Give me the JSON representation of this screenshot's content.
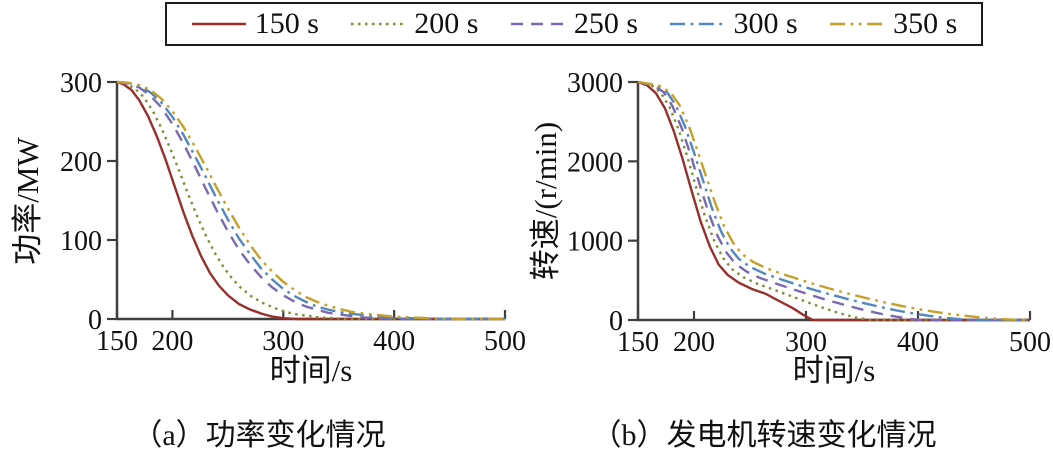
{
  "figure": {
    "background": "#ffffff"
  },
  "styles": {
    "axis_color": "#3f3f3f",
    "text_color": "#111111",
    "tick_font_size": 28,
    "line_width": 2.4,
    "dash_patterns": {
      "solid": "",
      "dotted": "2.5 4.5",
      "dashed": "12 8",
      "dashdot": "15 5.5 2.8 5.5",
      "dashdotdot": "15 5.5 2.8 5.5 2.8 5.5"
    }
  },
  "chart_data": [
    {
      "panel": "a",
      "type": "line",
      "caption": "（a）功率变化情况",
      "xlabel": "时间/s",
      "ylabel": "功率/MW",
      "xlim": [
        150,
        500
      ],
      "ylim": [
        0,
        300
      ],
      "xticks": [
        150,
        200,
        300,
        400,
        500
      ],
      "yticks": [
        0,
        100,
        200,
        300
      ],
      "grid": false,
      "legend_position": "top-outside",
      "series": [
        {
          "name": "150 s",
          "color": "#97302c",
          "dash": "solid",
          "points": [
            [
              150,
              300
            ],
            [
              156,
              297
            ],
            [
              163,
              290
            ],
            [
              170,
              277
            ],
            [
              178,
              257
            ],
            [
              186,
              231
            ],
            [
              194,
              201
            ],
            [
              202,
              168
            ],
            [
              210,
              135
            ],
            [
              218,
              105
            ],
            [
              226,
              79
            ],
            [
              234,
              58
            ],
            [
              242,
              42
            ],
            [
              250,
              30
            ],
            [
              260,
              19
            ],
            [
              270,
              12
            ],
            [
              280,
              7
            ],
            [
              290,
              3
            ],
            [
              300,
              1
            ],
            [
              312,
              0
            ],
            [
              500,
              0
            ]
          ]
        },
        {
          "name": "200 s",
          "color": "#7f8d33",
          "dash": "dotted",
          "points": [
            [
              150,
              300
            ],
            [
              158,
              298
            ],
            [
              166,
              292
            ],
            [
              174,
              281
            ],
            [
              182,
              264
            ],
            [
              190,
              242
            ],
            [
              198,
              216
            ],
            [
              206,
              188
            ],
            [
              214,
              159
            ],
            [
              222,
              131
            ],
            [
              230,
              106
            ],
            [
              238,
              84
            ],
            [
              246,
              66
            ],
            [
              254,
              51
            ],
            [
              262,
              39
            ],
            [
              272,
              28
            ],
            [
              282,
              20
            ],
            [
              292,
              14
            ],
            [
              302,
              9
            ],
            [
              312,
              6
            ],
            [
              322,
              4
            ],
            [
              332,
              2
            ],
            [
              345,
              1
            ],
            [
              358,
              0
            ],
            [
              500,
              0
            ]
          ]
        },
        {
          "name": "250 s",
          "color": "#7a68b0",
          "dash": "dashed",
          "points": [
            [
              150,
              300
            ],
            [
              160,
              298
            ],
            [
              170,
              293
            ],
            [
              180,
              283
            ],
            [
              190,
              268
            ],
            [
              200,
              247
            ],
            [
              210,
              222
            ],
            [
              220,
              194
            ],
            [
              230,
              165
            ],
            [
              240,
              137
            ],
            [
              250,
              111
            ],
            [
              260,
              88
            ],
            [
              270,
              69
            ],
            [
              280,
              53
            ],
            [
              290,
              40
            ],
            [
              300,
              30
            ],
            [
              310,
              22
            ],
            [
              320,
              16
            ],
            [
              330,
              12
            ],
            [
              340,
              8
            ],
            [
              350,
              6
            ],
            [
              360,
              4
            ],
            [
              372,
              2
            ],
            [
              386,
              1
            ],
            [
              400,
              0
            ],
            [
              500,
              0
            ]
          ]
        },
        {
          "name": "300 s",
          "color": "#5288bd",
          "dash": "dashdot",
          "points": [
            [
              150,
              300
            ],
            [
              160,
              299
            ],
            [
              170,
              295
            ],
            [
              180,
              287
            ],
            [
              190,
              274
            ],
            [
              200,
              256
            ],
            [
              210,
              233
            ],
            [
              220,
              207
            ],
            [
              230,
              180
            ],
            [
              240,
              152
            ],
            [
              250,
              126
            ],
            [
              260,
              102
            ],
            [
              270,
              82
            ],
            [
              280,
              64
            ],
            [
              290,
              50
            ],
            [
              300,
              38
            ],
            [
              310,
              29
            ],
            [
              320,
              22
            ],
            [
              330,
              16
            ],
            [
              340,
              12
            ],
            [
              350,
              9
            ],
            [
              360,
              7
            ],
            [
              372,
              5
            ],
            [
              384,
              3
            ],
            [
              398,
              2
            ],
            [
              415,
              1
            ],
            [
              435,
              0
            ],
            [
              500,
              0
            ]
          ]
        },
        {
          "name": "350 s",
          "color": "#c7a02a",
          "dash": "dashdotdot",
          "points": [
            [
              150,
              300
            ],
            [
              160,
              299
            ],
            [
              170,
              296
            ],
            [
              180,
              290
            ],
            [
              190,
              279
            ],
            [
              200,
              263
            ],
            [
              210,
              243
            ],
            [
              220,
              219
            ],
            [
              230,
              193
            ],
            [
              240,
              166
            ],
            [
              250,
              140
            ],
            [
              260,
              116
            ],
            [
              270,
              94
            ],
            [
              280,
              75
            ],
            [
              290,
              60
            ],
            [
              300,
              47
            ],
            [
              310,
              37
            ],
            [
              320,
              28
            ],
            [
              330,
              22
            ],
            [
              340,
              17
            ],
            [
              350,
              13
            ],
            [
              362,
              9
            ],
            [
              374,
              7
            ],
            [
              386,
              5
            ],
            [
              400,
              3
            ],
            [
              415,
              2
            ],
            [
              432,
              1
            ],
            [
              455,
              0
            ],
            [
              500,
              0
            ]
          ]
        }
      ]
    },
    {
      "panel": "b",
      "type": "line",
      "caption": "（b）发电机转速变化情况",
      "xlabel": "时间/s",
      "ylabel": "转速/(r/min)",
      "xlim": [
        150,
        500
      ],
      "ylim": [
        0,
        3000
      ],
      "xticks": [
        150,
        200,
        300,
        400,
        500
      ],
      "yticks": [
        0,
        1000,
        2000,
        3000
      ],
      "grid": false,
      "legend_position": "top-outside",
      "series": [
        {
          "name": "150 s",
          "color": "#97302c",
          "dash": "solid",
          "points": [
            [
              150,
              3000
            ],
            [
              158,
              2960
            ],
            [
              166,
              2860
            ],
            [
              174,
              2670
            ],
            [
              182,
              2380
            ],
            [
              190,
              2020
            ],
            [
              198,
              1620
            ],
            [
              206,
              1240
            ],
            [
              214,
              930
            ],
            [
              222,
              700
            ],
            [
              230,
              570
            ],
            [
              240,
              470
            ],
            [
              252,
              390
            ],
            [
              264,
              330
            ],
            [
              276,
              240
            ],
            [
              288,
              150
            ],
            [
              298,
              60
            ],
            [
              306,
              0
            ],
            [
              500,
              0
            ]
          ]
        },
        {
          "name": "200 s",
          "color": "#7f8d33",
          "dash": "dotted",
          "points": [
            [
              150,
              3000
            ],
            [
              162,
              2960
            ],
            [
              170,
              2870
            ],
            [
              178,
              2690
            ],
            [
              186,
              2410
            ],
            [
              194,
              2060
            ],
            [
              202,
              1670
            ],
            [
              210,
              1300
            ],
            [
              218,
              1000
            ],
            [
              226,
              780
            ],
            [
              234,
              640
            ],
            [
              244,
              540
            ],
            [
              256,
              460
            ],
            [
              270,
              390
            ],
            [
              285,
              310
            ],
            [
              300,
              230
            ],
            [
              315,
              155
            ],
            [
              330,
              85
            ],
            [
              345,
              30
            ],
            [
              358,
              0
            ],
            [
              500,
              0
            ]
          ]
        },
        {
          "name": "250 s",
          "color": "#7a68b0",
          "dash": "dashed",
          "points": [
            [
              150,
              3000
            ],
            [
              164,
              2960
            ],
            [
              173,
              2870
            ],
            [
              181,
              2690
            ],
            [
              189,
              2420
            ],
            [
              197,
              2080
            ],
            [
              205,
              1710
            ],
            [
              213,
              1350
            ],
            [
              221,
              1060
            ],
            [
              229,
              850
            ],
            [
              237,
              710
            ],
            [
              247,
              610
            ],
            [
              259,
              530
            ],
            [
              273,
              460
            ],
            [
              288,
              390
            ],
            [
              303,
              320
            ],
            [
              318,
              255
            ],
            [
              333,
              195
            ],
            [
              348,
              140
            ],
            [
              363,
              90
            ],
            [
              378,
              48
            ],
            [
              392,
              15
            ],
            [
              403,
              0
            ],
            [
              500,
              0
            ]
          ]
        },
        {
          "name": "300 s",
          "color": "#5288bd",
          "dash": "dashdot",
          "points": [
            [
              150,
              3000
            ],
            [
              166,
              2960
            ],
            [
              176,
              2870
            ],
            [
              184,
              2700
            ],
            [
              192,
              2440
            ],
            [
              200,
              2110
            ],
            [
              208,
              1760
            ],
            [
              216,
              1410
            ],
            [
              224,
              1120
            ],
            [
              232,
              910
            ],
            [
              240,
              770
            ],
            [
              250,
              670
            ],
            [
              262,
              590
            ],
            [
              276,
              520
            ],
            [
              291,
              450
            ],
            [
              306,
              385
            ],
            [
              321,
              325
            ],
            [
              336,
              268
            ],
            [
              351,
              215
            ],
            [
              366,
              165
            ],
            [
              381,
              120
            ],
            [
              396,
              82
            ],
            [
              411,
              50
            ],
            [
              426,
              25
            ],
            [
              440,
              8
            ],
            [
              452,
              0
            ],
            [
              500,
              0
            ]
          ]
        },
        {
          "name": "350 s",
          "color": "#c7a02a",
          "dash": "dashdotdot",
          "points": [
            [
              150,
              3000
            ],
            [
              168,
              2960
            ],
            [
              179,
              2870
            ],
            [
              187,
              2710
            ],
            [
              195,
              2460
            ],
            [
              203,
              2140
            ],
            [
              211,
              1800
            ],
            [
              219,
              1470
            ],
            [
              227,
              1180
            ],
            [
              235,
              970
            ],
            [
              243,
              830
            ],
            [
              253,
              730
            ],
            [
              265,
              650
            ],
            [
              279,
              580
            ],
            [
              294,
              510
            ],
            [
              309,
              445
            ],
            [
              324,
              385
            ],
            [
              339,
              328
            ],
            [
              354,
              275
            ],
            [
              369,
              225
            ],
            [
              384,
              180
            ],
            [
              399,
              140
            ],
            [
              414,
              105
            ],
            [
              429,
              75
            ],
            [
              444,
              50
            ],
            [
              459,
              28
            ],
            [
              474,
              12
            ],
            [
              487,
              3
            ],
            [
              497,
              0
            ],
            [
              500,
              0
            ]
          ]
        }
      ]
    }
  ]
}
